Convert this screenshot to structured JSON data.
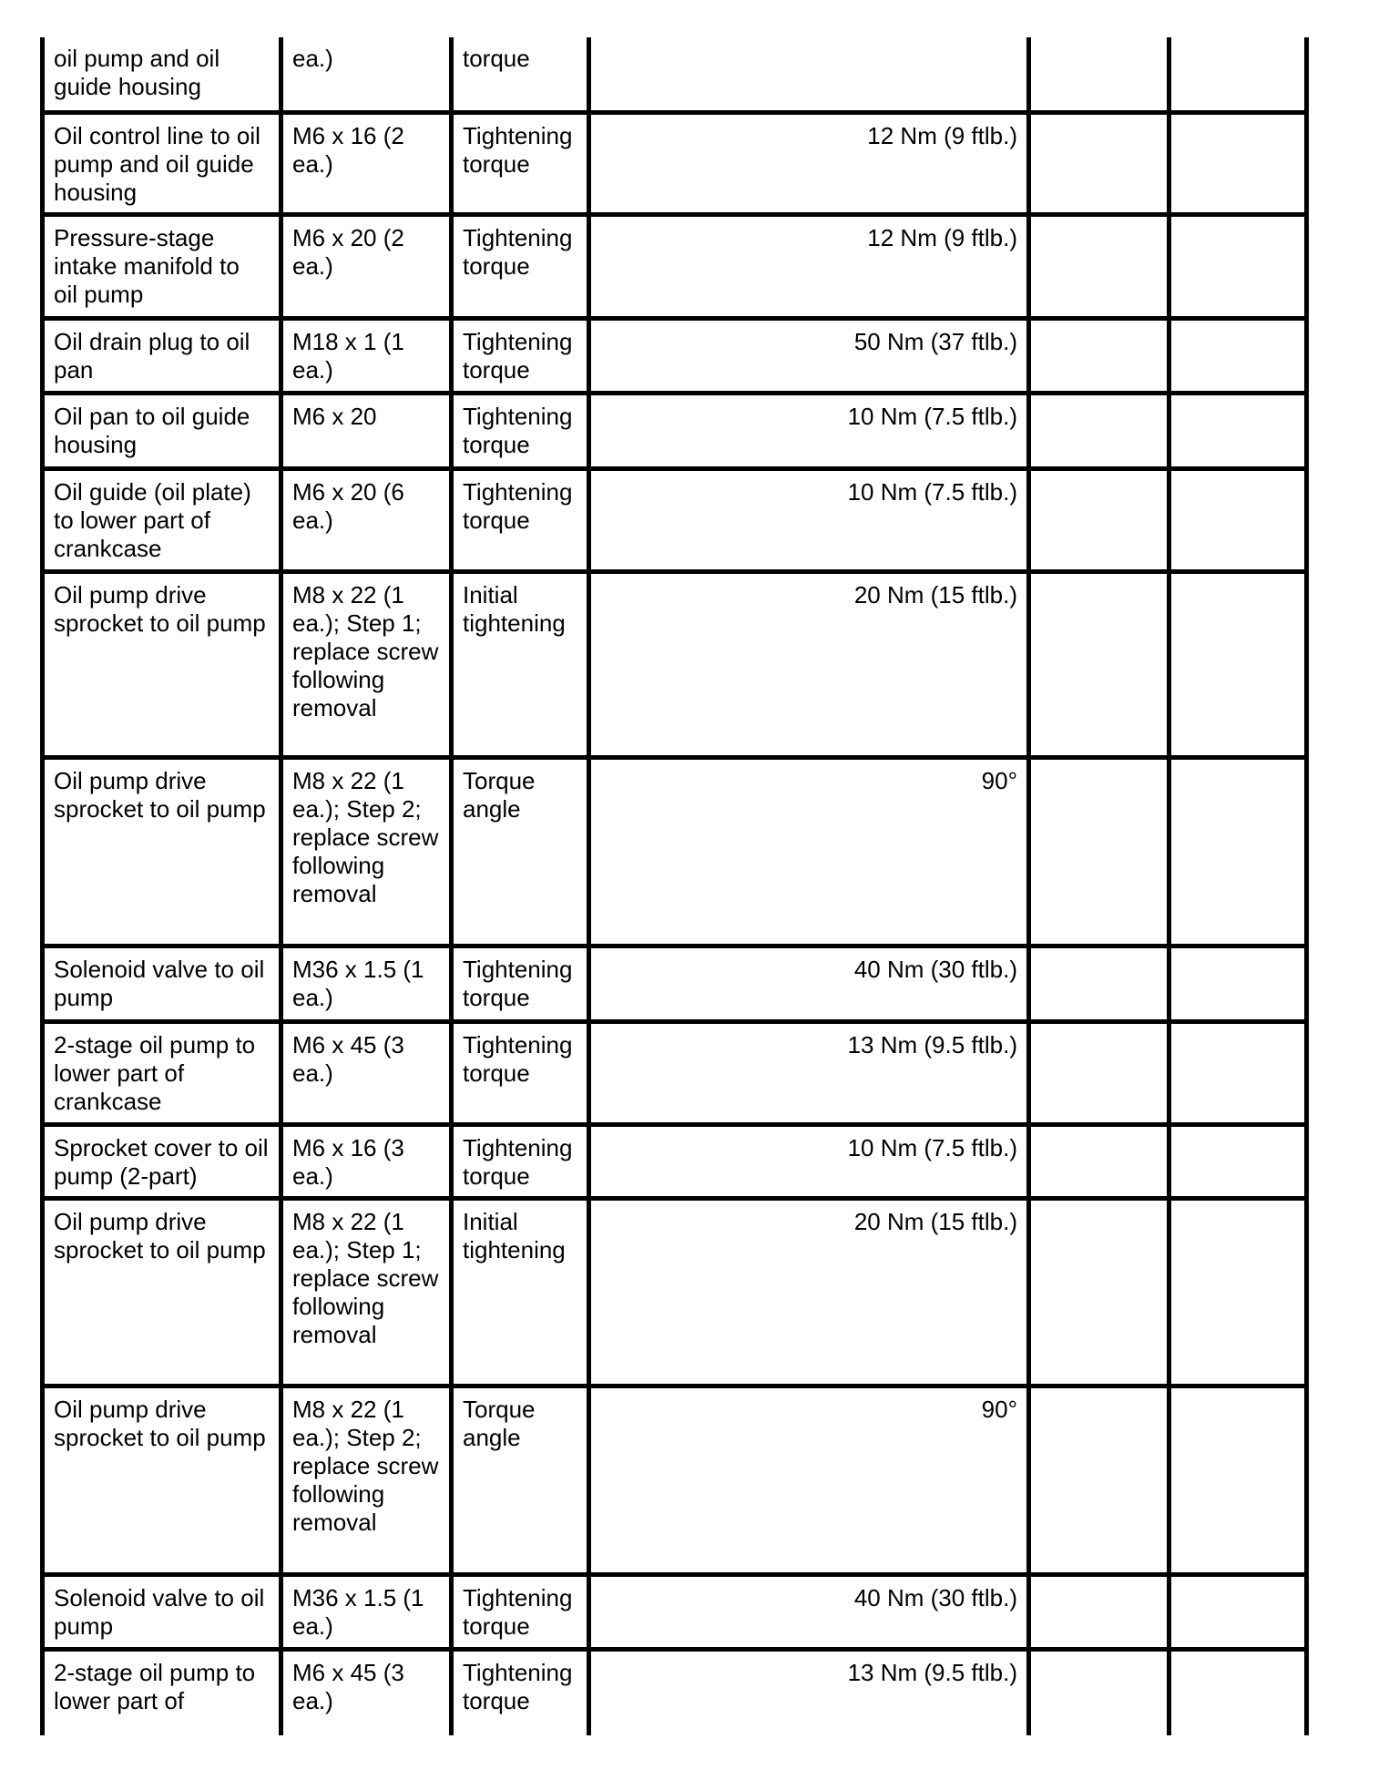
{
  "table": {
    "rows": [
      {
        "component": "oil pump and oil guide housing",
        "fastener": "ea.)",
        "type": "torque",
        "value": ""
      },
      {
        "component": "Oil control line to oil pump and oil guide housing",
        "fastener": "M6 x 16 (2 ea.)",
        "type": "Tightening torque",
        "value": "12 Nm (9 ftlb.)"
      },
      {
        "component": "Pressure-stage intake manifold to oil pump",
        "fastener": "M6 x 20 (2 ea.)",
        "type": "Tightening torque",
        "value": "12 Nm (9 ftlb.)"
      },
      {
        "component": "Oil drain plug to oil pan",
        "fastener": "M18 x 1 (1 ea.)",
        "type": "Tightening torque",
        "value": "50 Nm (37 ftlb.)"
      },
      {
        "component": "Oil pan to oil guide housing",
        "fastener": "M6 x 20",
        "type": "Tightening torque",
        "value": "10 Nm (7.5 ftlb.)"
      },
      {
        "component": "Oil guide (oil plate) to lower part of crankcase",
        "fastener": "M6 x 20 (6 ea.)",
        "type": "Tightening torque",
        "value": "10 Nm (7.5 ftlb.)"
      },
      {
        "component": "Oil pump drive sprocket to oil pump",
        "fastener": "M8 x 22 (1 ea.); Step 1; replace screw following removal",
        "type": "Initial tightening",
        "value": "20 Nm (15 ftlb.)"
      },
      {
        "component": "Oil pump drive sprocket to oil pump",
        "fastener": "M8 x 22 (1 ea.); Step 2; replace screw following removal",
        "type": "Torque angle",
        "value": "90°"
      },
      {
        "component": "Solenoid valve to oil pump",
        "fastener": "M36 x 1.5 (1 ea.)",
        "type": "Tightening torque",
        "value": "40 Nm (30 ftlb.)"
      },
      {
        "component": "2-stage oil pump to lower part of crankcase",
        "fastener": "M6 x 45 (3 ea.)",
        "type": "Tightening torque",
        "value": "13 Nm (9.5 ftlb.)"
      },
      {
        "component": "Sprocket cover to oil pump (2-part)",
        "fastener": "M6 x 16 (3 ea.)",
        "type": "Tightening torque",
        "value": "10 Nm (7.5 ftlb.)"
      },
      {
        "component": "Oil pump drive sprocket to oil pump",
        "fastener": "M8 x 22 (1 ea.); Step 1; replace screw following removal",
        "type": "Initial tightening",
        "value": "20 Nm (15 ftlb.)"
      },
      {
        "component": "Oil pump drive sprocket to oil pump",
        "fastener": "M8 x 22 (1 ea.); Step 2; replace screw following removal",
        "type": "Torque angle",
        "value": "90°"
      },
      {
        "component": "Solenoid valve to oil pump",
        "fastener": "M36 x 1.5 (1 ea.)",
        "type": "Tightening torque",
        "value": "40 Nm (30 ftlb.)"
      },
      {
        "component": "2-stage oil pump to lower part of",
        "fastener": "M6 x 45 (3 ea.)",
        "type": "Tightening torque",
        "value": "13 Nm (9.5 ftlb.)"
      }
    ]
  }
}
